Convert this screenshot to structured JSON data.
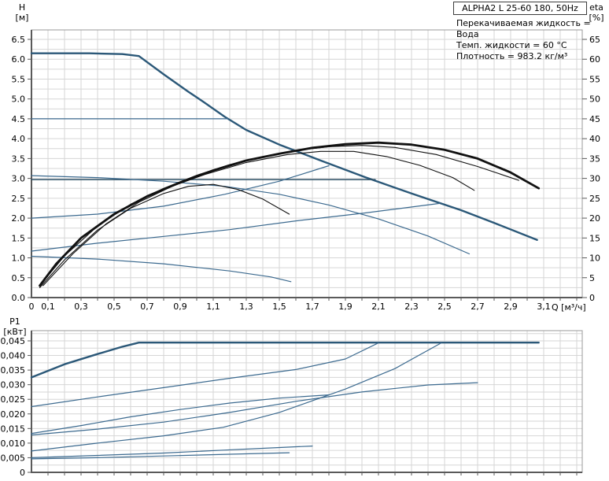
{
  "header": {
    "title": "ALPHA2 L 25-60 180, 50Hz",
    "info_lines": [
      "Перекачиваемая жидкость = Вода",
      "Темп. жидкости = 60 °C",
      "Плотность = 983.2 кг/м³"
    ]
  },
  "axes_labels": {
    "head_symbol": "H",
    "head_unit": "[м]",
    "eff_symbol": "eta",
    "eff_unit": "[%]",
    "power_symbol": "P1",
    "power_unit": "[кВт]",
    "flow_label": "Q [м³/ч]"
  },
  "colors": {
    "curve_bold": "#2b5878",
    "curve_thin": "#3c6a8f",
    "curve_dark": "#2f5268",
    "eta_black": "#111111",
    "grid": "#d6d6d6",
    "frame": "#9a9a9a",
    "axis": "#5a5a5a",
    "text": "#000000"
  },
  "chart_data": [
    {
      "type": "line",
      "title": "QH and efficiency curves",
      "xlabel": "Q [м³/ч]",
      "ylabel_left": "H [м]",
      "ylabel_right": "eta [%]",
      "xlim": [
        0,
        3.3333
      ],
      "ylim_left": [
        0,
        6.738
      ],
      "ylim_right": [
        0,
        67.38
      ],
      "grid": {
        "x_step": 0.1,
        "y_step": 0.25
      },
      "show_x_labels": true,
      "x_ticks": [
        {
          "v": 0,
          "label": "0"
        },
        {
          "v": 0.1,
          "label": "0,1"
        },
        {
          "v": 0.3,
          "label": "0,3"
        },
        {
          "v": 0.5,
          "label": "0,5"
        },
        {
          "v": 0.7,
          "label": "0,7"
        },
        {
          "v": 0.9,
          "label": "0,9"
        },
        {
          "v": 1.1,
          "label": "1,1"
        },
        {
          "v": 1.3,
          "label": "1,3"
        },
        {
          "v": 1.5,
          "label": "1,5"
        },
        {
          "v": 1.7,
          "label": "1,7"
        },
        {
          "v": 1.9,
          "label": "1,9"
        },
        {
          "v": 2.1,
          "label": "2,1"
        },
        {
          "v": 2.3,
          "label": "2,3"
        },
        {
          "v": 2.5,
          "label": "2,5"
        },
        {
          "v": 2.7,
          "label": "2,7"
        },
        {
          "v": 2.9,
          "label": "2,9"
        },
        {
          "v": 3.1,
          "label": "3,1"
        }
      ],
      "y_ticks_left": [
        {
          "v": 0,
          "label": "0.0"
        },
        {
          "v": 0.5,
          "label": "0.5"
        },
        {
          "v": 1.0,
          "label": "1.0"
        },
        {
          "v": 1.5,
          "label": "1.5"
        },
        {
          "v": 2.0,
          "label": "2.0"
        },
        {
          "v": 2.5,
          "label": "2.5"
        },
        {
          "v": 3.0,
          "label": "3.0"
        },
        {
          "v": 3.5,
          "label": "3.5"
        },
        {
          "v": 4.0,
          "label": "4.0"
        },
        {
          "v": 4.5,
          "label": "4.5"
        },
        {
          "v": 5.0,
          "label": "5.0"
        },
        {
          "v": 5.5,
          "label": "5.5"
        },
        {
          "v": 6.0,
          "label": "6.0"
        },
        {
          "v": 6.5,
          "label": "6.5"
        }
      ],
      "y_ticks_right": [
        {
          "v": 0,
          "label": "0"
        },
        {
          "v": 5,
          "label": "5"
        },
        {
          "v": 10,
          "label": "10"
        },
        {
          "v": 15,
          "label": "15"
        },
        {
          "v": 20,
          "label": "20"
        },
        {
          "v": 25,
          "label": "25"
        },
        {
          "v": 30,
          "label": "30"
        },
        {
          "v": 35,
          "label": "35"
        },
        {
          "v": 40,
          "label": "40"
        },
        {
          "v": 45,
          "label": "45"
        },
        {
          "v": 50,
          "label": "50"
        },
        {
          "v": 55,
          "label": "55"
        },
        {
          "v": 60,
          "label": "60"
        },
        {
          "v": 65,
          "label": "65"
        }
      ],
      "series": [
        {
          "name": "speed-3-qh",
          "color": "curve_bold",
          "width": 2.4,
          "points": [
            [
              0,
              6.15
            ],
            [
              0.35,
              6.15
            ],
            [
              0.55,
              6.13
            ],
            [
              0.65,
              6.08
            ],
            [
              0.8,
              5.62
            ],
            [
              0.95,
              5.18
            ],
            [
              1.05,
              4.9
            ],
            [
              1.17,
              4.55
            ],
            [
              1.3,
              4.22
            ],
            [
              1.5,
              3.85
            ],
            [
              1.75,
              3.45
            ],
            [
              2.02,
              3.03
            ],
            [
              2.3,
              2.62
            ],
            [
              2.6,
              2.2
            ],
            [
              2.8,
              1.88
            ],
            [
              3.06,
              1.45
            ]
          ]
        },
        {
          "name": "const-pressure-4.5",
          "color": "curve_thin",
          "width": 1.3,
          "points": [
            [
              0,
              4.5
            ],
            [
              1.19,
              4.5
            ]
          ]
        },
        {
          "name": "const-pressure-3.0",
          "color": "curve_dark",
          "width": 1.5,
          "points": [
            [
              0,
              2.97
            ],
            [
              2.08,
              2.97
            ]
          ]
        },
        {
          "name": "speed-2-qh",
          "color": "curve_thin",
          "width": 1.2,
          "points": [
            [
              0,
              3.07
            ],
            [
              0.4,
              3.02
            ],
            [
              0.8,
              2.93
            ],
            [
              1.17,
              2.8
            ],
            [
              1.5,
              2.6
            ],
            [
              1.8,
              2.33
            ],
            [
              2.1,
              1.98
            ],
            [
              2.4,
              1.55
            ],
            [
              2.65,
              1.1
            ]
          ]
        },
        {
          "name": "speed-1-qh",
          "color": "curve_thin",
          "width": 1.2,
          "points": [
            [
              0,
              1.04
            ],
            [
              0.4,
              0.97
            ],
            [
              0.8,
              0.85
            ],
            [
              1.2,
              0.67
            ],
            [
              1.45,
              0.52
            ],
            [
              1.57,
              0.4
            ]
          ]
        },
        {
          "name": "prop-pressure-2",
          "color": "curve_thin",
          "width": 1.2,
          "points": [
            [
              0,
              2.0
            ],
            [
              0.4,
              2.1
            ],
            [
              0.8,
              2.3
            ],
            [
              1.17,
              2.6
            ],
            [
              1.5,
              2.93
            ],
            [
              1.8,
              3.32
            ]
          ]
        },
        {
          "name": "prop-pressure-1",
          "color": "curve_thin",
          "width": 1.2,
          "points": [
            [
              0,
              1.17
            ],
            [
              0.4,
              1.37
            ],
            [
              0.8,
              1.54
            ],
            [
              1.2,
              1.71
            ],
            [
              1.6,
              1.93
            ],
            [
              2.0,
              2.12
            ],
            [
              2.47,
              2.37
            ]
          ]
        },
        {
          "name": "eta-speed-3",
          "color": "eta_black",
          "width": 2.8,
          "points": [
            [
              0.05,
              0.3
            ],
            [
              0.15,
              0.85
            ],
            [
              0.3,
              1.5
            ],
            [
              0.5,
              2.1
            ],
            [
              0.7,
              2.55
            ],
            [
              0.9,
              2.9
            ],
            [
              1.1,
              3.2
            ],
            [
              1.3,
              3.45
            ],
            [
              1.5,
              3.62
            ],
            [
              1.7,
              3.77
            ],
            [
              1.9,
              3.86
            ],
            [
              2.1,
              3.9
            ],
            [
              2.3,
              3.85
            ],
            [
              2.5,
              3.72
            ],
            [
              2.7,
              3.5
            ],
            [
              2.9,
              3.15
            ],
            [
              3.07,
              2.75
            ]
          ]
        },
        {
          "name": "eta-a",
          "color": "eta_black",
          "width": 1.1,
          "points": [
            [
              0.06,
              0.35
            ],
            [
              0.2,
              1.05
            ],
            [
              0.4,
              1.8
            ],
            [
              0.6,
              2.35
            ],
            [
              0.8,
              2.75
            ],
            [
              1.0,
              3.08
            ],
            [
              1.2,
              3.35
            ],
            [
              1.4,
              3.55
            ],
            [
              1.6,
              3.7
            ],
            [
              1.8,
              3.8
            ],
            [
              2.0,
              3.83
            ],
            [
              2.2,
              3.78
            ],
            [
              2.45,
              3.6
            ],
            [
              2.7,
              3.3
            ],
            [
              2.95,
              2.95
            ]
          ]
        },
        {
          "name": "eta-b",
          "color": "eta_black",
          "width": 1.1,
          "points": [
            [
              0.07,
              0.3
            ],
            [
              0.25,
              1.1
            ],
            [
              0.45,
              1.85
            ],
            [
              0.65,
              2.4
            ],
            [
              0.85,
              2.8
            ],
            [
              1.05,
              3.1
            ],
            [
              1.3,
              3.4
            ],
            [
              1.55,
              3.6
            ],
            [
              1.75,
              3.68
            ],
            [
              1.95,
              3.68
            ],
            [
              2.15,
              3.55
            ],
            [
              2.35,
              3.33
            ],
            [
              2.55,
              3.02
            ],
            [
              2.68,
              2.7
            ]
          ]
        },
        {
          "name": "eta-c",
          "color": "eta_black",
          "width": 1.1,
          "points": [
            [
              0.05,
              0.25
            ],
            [
              0.2,
              0.95
            ],
            [
              0.4,
              1.7
            ],
            [
              0.6,
              2.25
            ],
            [
              0.8,
              2.62
            ],
            [
              0.95,
              2.8
            ],
            [
              1.1,
              2.85
            ],
            [
              1.25,
              2.72
            ],
            [
              1.4,
              2.48
            ],
            [
              1.56,
              2.1
            ]
          ]
        }
      ]
    },
    {
      "type": "line",
      "title": "Power input P1",
      "xlabel": "",
      "ylabel_left": "P1 [кВт]",
      "xlim": [
        0,
        3.3333
      ],
      "ylim_left": [
        0,
        0.0485
      ],
      "grid": {
        "x_step": 0.1,
        "y_step": 0.0025
      },
      "show_x_labels": false,
      "x_ticks": [],
      "y_ticks_left": [
        {
          "v": 0,
          "label": "0"
        },
        {
          "v": 0.005,
          "label": "0,005"
        },
        {
          "v": 0.01,
          "label": "0,010"
        },
        {
          "v": 0.015,
          "label": "0,015"
        },
        {
          "v": 0.02,
          "label": "0,020"
        },
        {
          "v": 0.025,
          "label": "0,025"
        },
        {
          "v": 0.03,
          "label": "0,030"
        },
        {
          "v": 0.035,
          "label": "0,035"
        },
        {
          "v": 0.04,
          "label": "0,040"
        },
        {
          "v": 0.045,
          "label": "0,045"
        }
      ],
      "y_ticks_right": [],
      "series": [
        {
          "name": "p1-speed-3",
          "color": "curve_bold",
          "width": 2.4,
          "points": [
            [
              0,
              0.0325
            ],
            [
              0.2,
              0.037
            ],
            [
              0.4,
              0.0405
            ],
            [
              0.55,
              0.043
            ],
            [
              0.65,
              0.0444
            ],
            [
              3.07,
              0.0444
            ]
          ]
        },
        {
          "name": "p1-const-pressure-3.0",
          "color": "curve_thin",
          "width": 1.2,
          "points": [
            [
              0,
              0.0225
            ],
            [
              0.4,
              0.0258
            ],
            [
              0.8,
              0.029
            ],
            [
              1.2,
              0.0322
            ],
            [
              1.6,
              0.0352
            ],
            [
              1.9,
              0.0388
            ],
            [
              2.1,
              0.0443
            ]
          ]
        },
        {
          "name": "p1-prop-pressure-2",
          "color": "curve_thin",
          "width": 1.2,
          "points": [
            [
              0,
              0.0073
            ],
            [
              0.4,
              0.01
            ],
            [
              0.8,
              0.0125
            ],
            [
              1.16,
              0.0154
            ],
            [
              1.5,
              0.0205
            ],
            [
              1.9,
              0.0285
            ],
            [
              2.2,
              0.0355
            ],
            [
              2.48,
              0.0443
            ]
          ]
        },
        {
          "name": "p1-speed-2",
          "color": "curve_thin",
          "width": 1.2,
          "points": [
            [
              0,
              0.0128
            ],
            [
              0.4,
              0.0148
            ],
            [
              0.8,
              0.0172
            ],
            [
              1.2,
              0.0205
            ],
            [
              1.6,
              0.0243
            ],
            [
              2.0,
              0.0275
            ],
            [
              2.4,
              0.0299
            ],
            [
              2.7,
              0.0307
            ]
          ]
        },
        {
          "name": "p1-const-pressure-4.5",
          "color": "curve_thin",
          "width": 1.2,
          "points": [
            [
              0,
              0.0133
            ],
            [
              0.3,
              0.016
            ],
            [
              0.6,
              0.019
            ],
            [
              0.9,
              0.0215
            ],
            [
              1.2,
              0.0237
            ],
            [
              1.5,
              0.0254
            ],
            [
              1.8,
              0.0265
            ]
          ]
        },
        {
          "name": "p1-prop-pressure-1",
          "color": "curve_thin",
          "width": 1.2,
          "points": [
            [
              0,
              0.005
            ],
            [
              0.4,
              0.0058
            ],
            [
              0.8,
              0.0066
            ],
            [
              1.16,
              0.0076
            ],
            [
              1.5,
              0.0085
            ],
            [
              1.7,
              0.009
            ]
          ]
        },
        {
          "name": "p1-speed-1",
          "color": "curve_thin",
          "width": 1.2,
          "points": [
            [
              0,
              0.0046
            ],
            [
              0.4,
              0.005
            ],
            [
              0.8,
              0.0056
            ],
            [
              1.2,
              0.0062
            ],
            [
              1.56,
              0.0067
            ]
          ]
        }
      ]
    }
  ]
}
